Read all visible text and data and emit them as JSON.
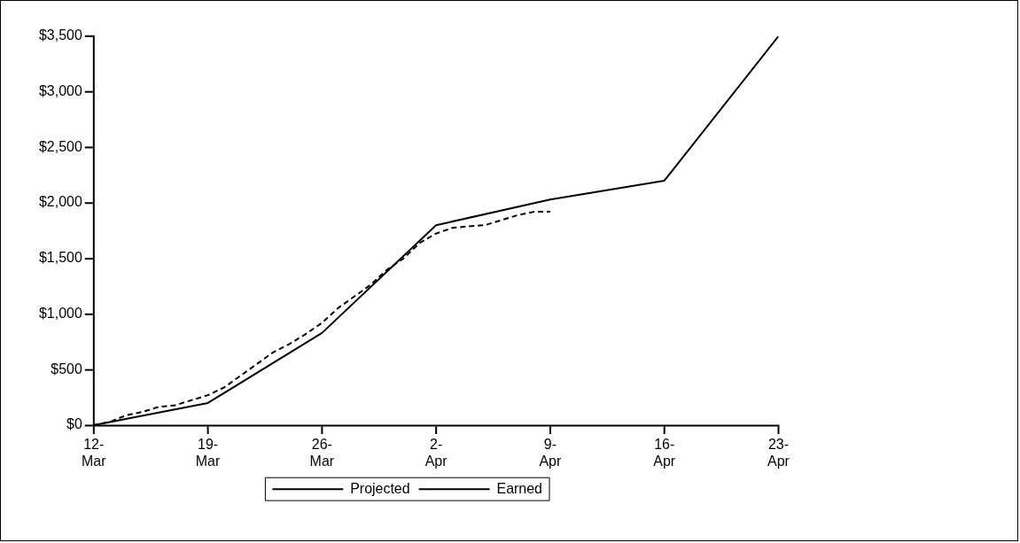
{
  "chart_data": {
    "type": "line",
    "marker": "none",
    "grid": false,
    "legend": "bottom",
    "xlim": [
      "--03-12",
      "--04-23"
    ],
    "xticks": [
      {
        "value": "--03-12",
        "label": "12-\nMar"
      },
      {
        "value": "--03-19",
        "label": "19-\nMar"
      },
      {
        "value": "--03-26",
        "label": "26-\nMar"
      },
      {
        "value": "--04-02",
        "label": "2-\nApr"
      },
      {
        "value": "--04-09",
        "label": "9-\nApr"
      },
      {
        "value": "--04-16",
        "label": "16-\nApr"
      },
      {
        "value": "--04-23",
        "label": "23-\nApr"
      }
    ],
    "ylim": [
      0,
      3500
    ],
    "yticks": [
      {
        "value": 0,
        "label": "$0"
      },
      {
        "value": 500,
        "label": "$500"
      },
      {
        "value": 1000,
        "label": "$1,000"
      },
      {
        "value": 1500,
        "label": "$1,500"
      },
      {
        "value": 2000,
        "label": "$2,000"
      },
      {
        "value": 2500,
        "label": "$2,500"
      },
      {
        "value": 3000,
        "label": "$3,000"
      },
      {
        "value": 3500,
        "label": "$3,500"
      }
    ],
    "series": [
      {
        "name": "Projected",
        "color": "#000000",
        "line_style": "solid",
        "x": [
          "--03-12",
          "--03-19",
          "--03-26",
          "--04-02",
          "--04-09",
          "--04-16",
          "--04-23"
        ],
        "values": [
          0,
          200,
          830,
          1800,
          2030,
          2200,
          3500
        ]
      },
      {
        "name": "Earned",
        "color": "#000000",
        "line_style": "dashed",
        "x": [
          "--03-12",
          "--03-13",
          "--03-14",
          "--03-15",
          "--03-16",
          "--03-17",
          "--03-18",
          "--03-19",
          "--03-20",
          "--03-21",
          "--03-22",
          "--03-23",
          "--03-24",
          "--03-25",
          "--03-26",
          "--03-27",
          "--03-28",
          "--03-29",
          "--03-30",
          "--03-31",
          "--04-01",
          "--04-02",
          "--04-03",
          "--04-04",
          "--04-05",
          "--04-06",
          "--04-07",
          "--04-08",
          "--04-09"
        ],
        "values": [
          0,
          30,
          90,
          120,
          165,
          180,
          225,
          270,
          340,
          445,
          550,
          655,
          730,
          820,
          920,
          1055,
          1160,
          1265,
          1400,
          1500,
          1640,
          1725,
          1775,
          1790,
          1800,
          1845,
          1890,
          1920,
          1920
        ]
      }
    ]
  }
}
